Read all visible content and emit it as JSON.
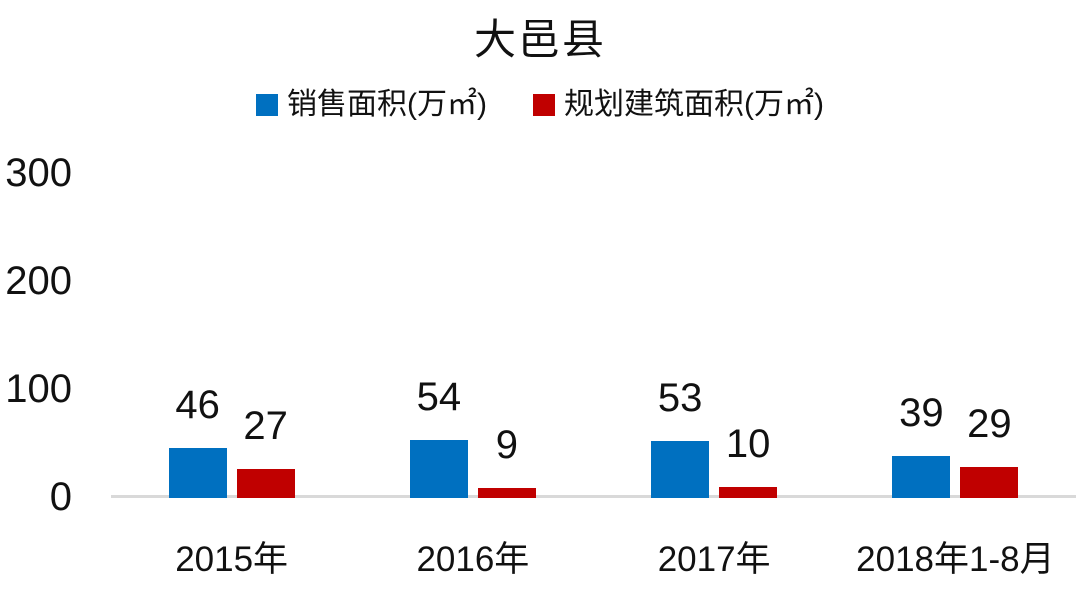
{
  "chart_data": {
    "type": "bar",
    "title": "大邑县",
    "categories": [
      "2015年",
      "2016年",
      "2017年",
      "2018年1-8月"
    ],
    "series": [
      {
        "name": "销售面积(万㎡)",
        "color": "#0070C0",
        "values": [
          46,
          54,
          53,
          39
        ]
      },
      {
        "name": "规划建筑面积(万㎡)",
        "color": "#C00000",
        "values": [
          27,
          9,
          10,
          29
        ]
      }
    ],
    "ylabel": "",
    "xlabel": "",
    "ylim": [
      0,
      300
    ],
    "yticks": [
      0,
      100,
      200,
      300
    ],
    "grid": false,
    "data_labels": true,
    "legend_position": "top",
    "axis_line_color": "#d9d9d9",
    "background_color": "#ffffff",
    "text_color": "#111111"
  }
}
